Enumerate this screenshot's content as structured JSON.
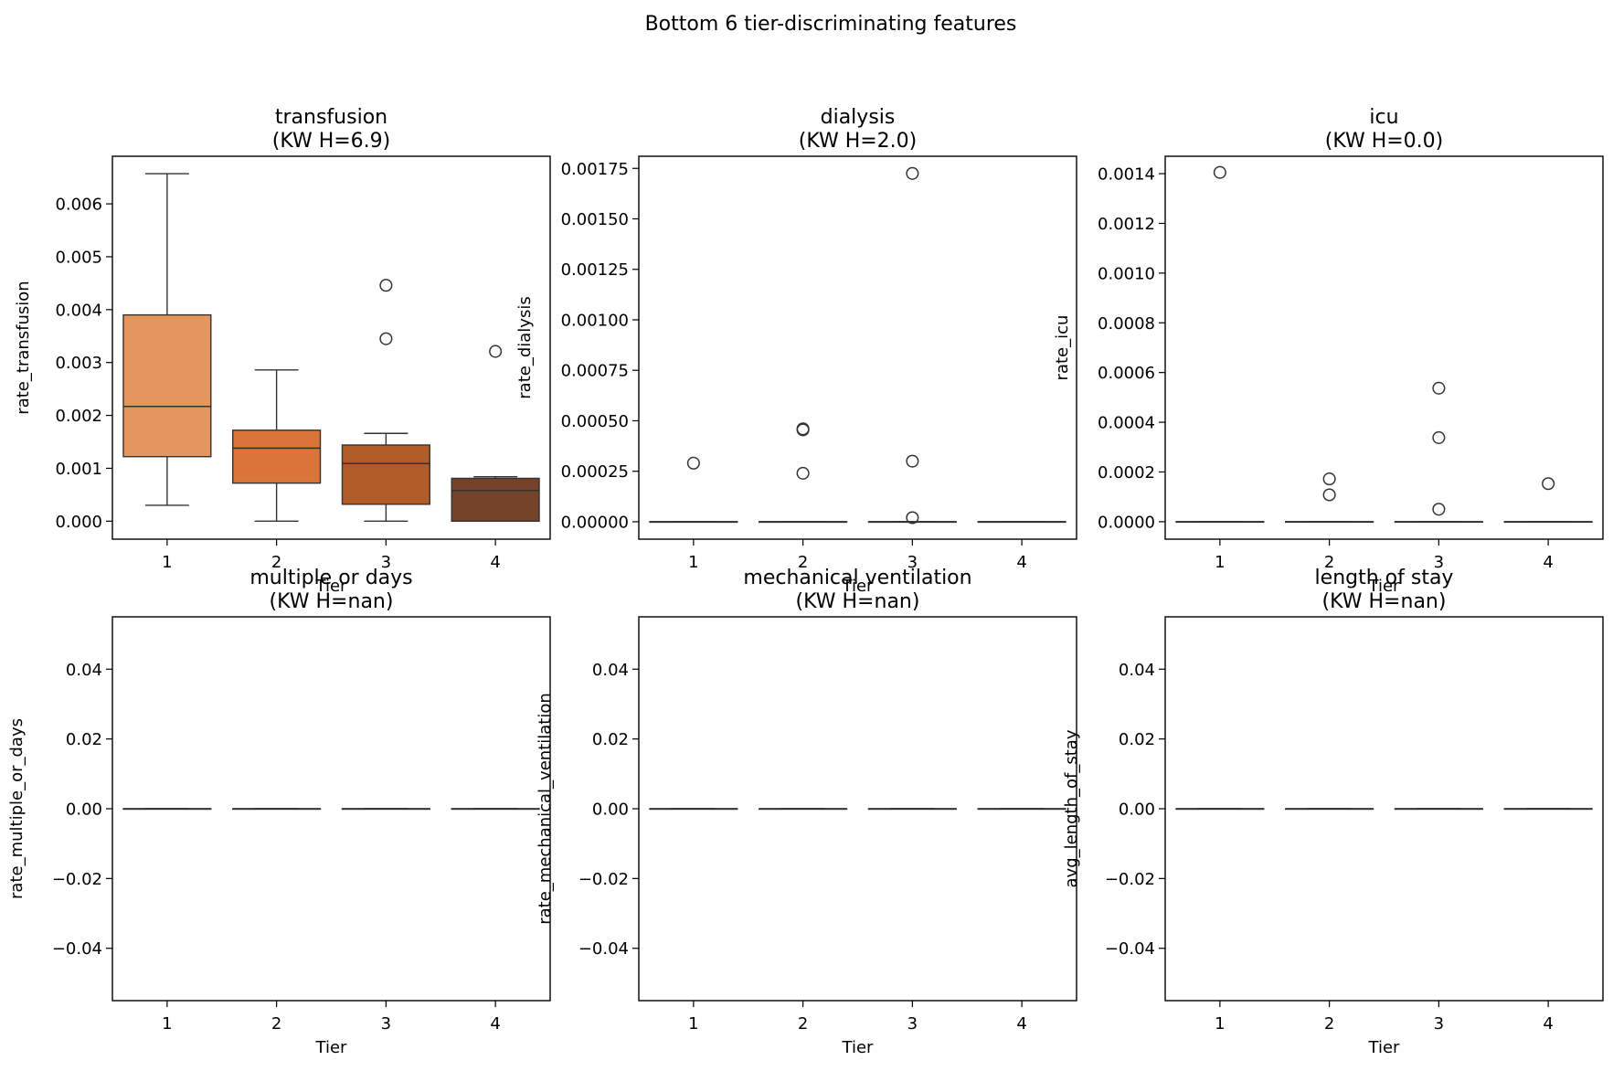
{
  "figure": {
    "title": "Bottom 6 tier-discriminating features"
  },
  "chart_data": [
    {
      "type": "box",
      "title_line1": "transfusion",
      "title_line2": "(KW H=6.9)",
      "xlabel": "Tier",
      "ylabel": "rate_transfusion",
      "categories": [
        "1",
        "2",
        "3",
        "4"
      ],
      "ylim": [
        -0.00034,
        0.0069
      ],
      "yticks": [
        0,
        0.001,
        0.002,
        0.003,
        0.004,
        0.005,
        0.006
      ],
      "ytick_labels": [
        "0.000",
        "0.001",
        "0.002",
        "0.003",
        "0.004",
        "0.005",
        "0.006"
      ],
      "colors": [
        "#e5965f",
        "#d97538",
        "#b15b29",
        "#75432a"
      ],
      "boxes": [
        {
          "whislo": 0.0003,
          "q1": 0.00122,
          "med": 0.00217,
          "q3": 0.0039,
          "whishi": 0.00657,
          "fliers": []
        },
        {
          "whislo": 0.0,
          "q1": 0.00072,
          "med": 0.00138,
          "q3": 0.00172,
          "whishi": 0.00286,
          "fliers": []
        },
        {
          "whislo": 0.0,
          "q1": 0.00032,
          "med": 0.00109,
          "q3": 0.00144,
          "whishi": 0.00166,
          "fliers": [
            0.00446,
            0.00345
          ]
        },
        {
          "whislo": 0.0,
          "q1": 0.0,
          "med": 0.00058,
          "q3": 0.00081,
          "whishi": 0.00084,
          "fliers": [
            0.00321
          ]
        }
      ]
    },
    {
      "type": "box",
      "title_line1": "dialysis",
      "title_line2": "(KW H=2.0)",
      "xlabel": "Tier",
      "ylabel": "rate_dialysis",
      "categories": [
        "1",
        "2",
        "3",
        "4"
      ],
      "ylim": [
        -8.63e-05,
        0.00181
      ],
      "yticks": [
        0,
        0.00025,
        0.0005,
        0.00075,
        0.001,
        0.00125,
        0.0015,
        0.00175
      ],
      "ytick_labels": [
        "0.00000",
        "0.00025",
        "0.00050",
        "0.00075",
        "0.00100",
        "0.00125",
        "0.00150",
        "0.00175"
      ],
      "colors": [
        "#e5965f",
        "#d97538",
        "#b15b29",
        "#75432a"
      ],
      "boxes": [
        {
          "whislo": 0,
          "q1": 0,
          "med": 0,
          "q3": 0,
          "whishi": 0,
          "fliers": [
            0.00029
          ]
        },
        {
          "whislo": 0,
          "q1": 0,
          "med": 0,
          "q3": 0,
          "whishi": 0,
          "fliers": [
            0.000455,
            0.00046,
            0.00024
          ]
        },
        {
          "whislo": 0,
          "q1": 0,
          "med": 0,
          "q3": 0,
          "whishi": 0,
          "fliers": [
            0.001725,
            0.0003,
            2e-05
          ]
        },
        {
          "whislo": 0,
          "q1": 0,
          "med": 0,
          "q3": 0,
          "whishi": 0,
          "fliers": []
        }
      ]
    },
    {
      "type": "box",
      "title_line1": "icu",
      "title_line2": "(KW H=0.0)",
      "xlabel": "Tier",
      "ylabel": "rate_icu",
      "categories": [
        "1",
        "2",
        "3",
        "4"
      ],
      "ylim": [
        -7.03e-05,
        0.00147
      ],
      "yticks": [
        0,
        0.0002,
        0.0004,
        0.0006,
        0.0008,
        0.001,
        0.0012,
        0.0014
      ],
      "ytick_labels": [
        "0.0000",
        "0.0002",
        "0.0004",
        "0.0006",
        "0.0008",
        "0.0010",
        "0.0012",
        "0.0014"
      ],
      "colors": [
        "#e5965f",
        "#d97538",
        "#b15b29",
        "#75432a"
      ],
      "boxes": [
        {
          "whislo": 0,
          "q1": 0,
          "med": 0,
          "q3": 0,
          "whishi": 0,
          "fliers": [
            0.001405
          ]
        },
        {
          "whislo": 0,
          "q1": 0,
          "med": 0,
          "q3": 0,
          "whishi": 0,
          "fliers": [
            0.000172,
            0.000108
          ]
        },
        {
          "whislo": 0,
          "q1": 0,
          "med": 0,
          "q3": 0,
          "whishi": 0,
          "fliers": [
            0.000537,
            0.000338,
            5e-05
          ]
        },
        {
          "whislo": 0,
          "q1": 0,
          "med": 0,
          "q3": 0,
          "whishi": 0,
          "fliers": [
            0.000153
          ]
        }
      ]
    },
    {
      "type": "box",
      "title_line1": "multiple or days",
      "title_line2": "(KW H=nan)",
      "xlabel": "Tier",
      "ylabel": "rate_multiple_or_days",
      "categories": [
        "1",
        "2",
        "3",
        "4"
      ],
      "ylim": [
        -0.055,
        0.055
      ],
      "yticks": [
        -0.04,
        -0.02,
        0,
        0.02,
        0.04
      ],
      "ytick_labels": [
        "−0.04",
        "−0.02",
        "0.00",
        "0.02",
        "0.04"
      ],
      "colors": [
        "#e5965f",
        "#d97538",
        "#b15b29",
        "#75432a"
      ],
      "boxes": [
        {
          "whislo": 0,
          "q1": 0,
          "med": 0,
          "q3": 0,
          "whishi": 0,
          "fliers": []
        },
        {
          "whislo": 0,
          "q1": 0,
          "med": 0,
          "q3": 0,
          "whishi": 0,
          "fliers": []
        },
        {
          "whislo": 0,
          "q1": 0,
          "med": 0,
          "q3": 0,
          "whishi": 0,
          "fliers": []
        },
        {
          "whislo": 0,
          "q1": 0,
          "med": 0,
          "q3": 0,
          "whishi": 0,
          "fliers": []
        }
      ]
    },
    {
      "type": "box",
      "title_line1": "mechanical ventilation",
      "title_line2": "(KW H=nan)",
      "xlabel": "Tier",
      "ylabel": "rate_mechanical_ventilation",
      "categories": [
        "1",
        "2",
        "3",
        "4"
      ],
      "ylim": [
        -0.055,
        0.055
      ],
      "yticks": [
        -0.04,
        -0.02,
        0,
        0.02,
        0.04
      ],
      "ytick_labels": [
        "−0.04",
        "−0.02",
        "0.00",
        "0.02",
        "0.04"
      ],
      "colors": [
        "#e5965f",
        "#d97538",
        "#b15b29",
        "#75432a"
      ],
      "boxes": [
        {
          "whislo": 0,
          "q1": 0,
          "med": 0,
          "q3": 0,
          "whishi": 0,
          "fliers": []
        },
        {
          "whislo": 0,
          "q1": 0,
          "med": 0,
          "q3": 0,
          "whishi": 0,
          "fliers": []
        },
        {
          "whislo": 0,
          "q1": 0,
          "med": 0,
          "q3": 0,
          "whishi": 0,
          "fliers": []
        },
        {
          "whislo": 0,
          "q1": 0,
          "med": 0,
          "q3": 0,
          "whishi": 0,
          "fliers": []
        }
      ]
    },
    {
      "type": "box",
      "title_line1": "length of stay",
      "title_line2": "(KW H=nan)",
      "xlabel": "Tier",
      "ylabel": "avg_length_of_stay",
      "categories": [
        "1",
        "2",
        "3",
        "4"
      ],
      "ylim": [
        -0.055,
        0.055
      ],
      "yticks": [
        -0.04,
        -0.02,
        0,
        0.02,
        0.04
      ],
      "ytick_labels": [
        "−0.04",
        "−0.02",
        "0.00",
        "0.02",
        "0.04"
      ],
      "colors": [
        "#e5965f",
        "#d97538",
        "#b15b29",
        "#75432a"
      ],
      "boxes": [
        {
          "whislo": 0,
          "q1": 0,
          "med": 0,
          "q3": 0,
          "whishi": 0,
          "fliers": []
        },
        {
          "whislo": 0,
          "q1": 0,
          "med": 0,
          "q3": 0,
          "whishi": 0,
          "fliers": []
        },
        {
          "whislo": 0,
          "q1": 0,
          "med": 0,
          "q3": 0,
          "whishi": 0,
          "fliers": []
        },
        {
          "whislo": 0,
          "q1": 0,
          "med": 0,
          "q3": 0,
          "whishi": 0,
          "fliers": []
        }
      ]
    }
  ]
}
